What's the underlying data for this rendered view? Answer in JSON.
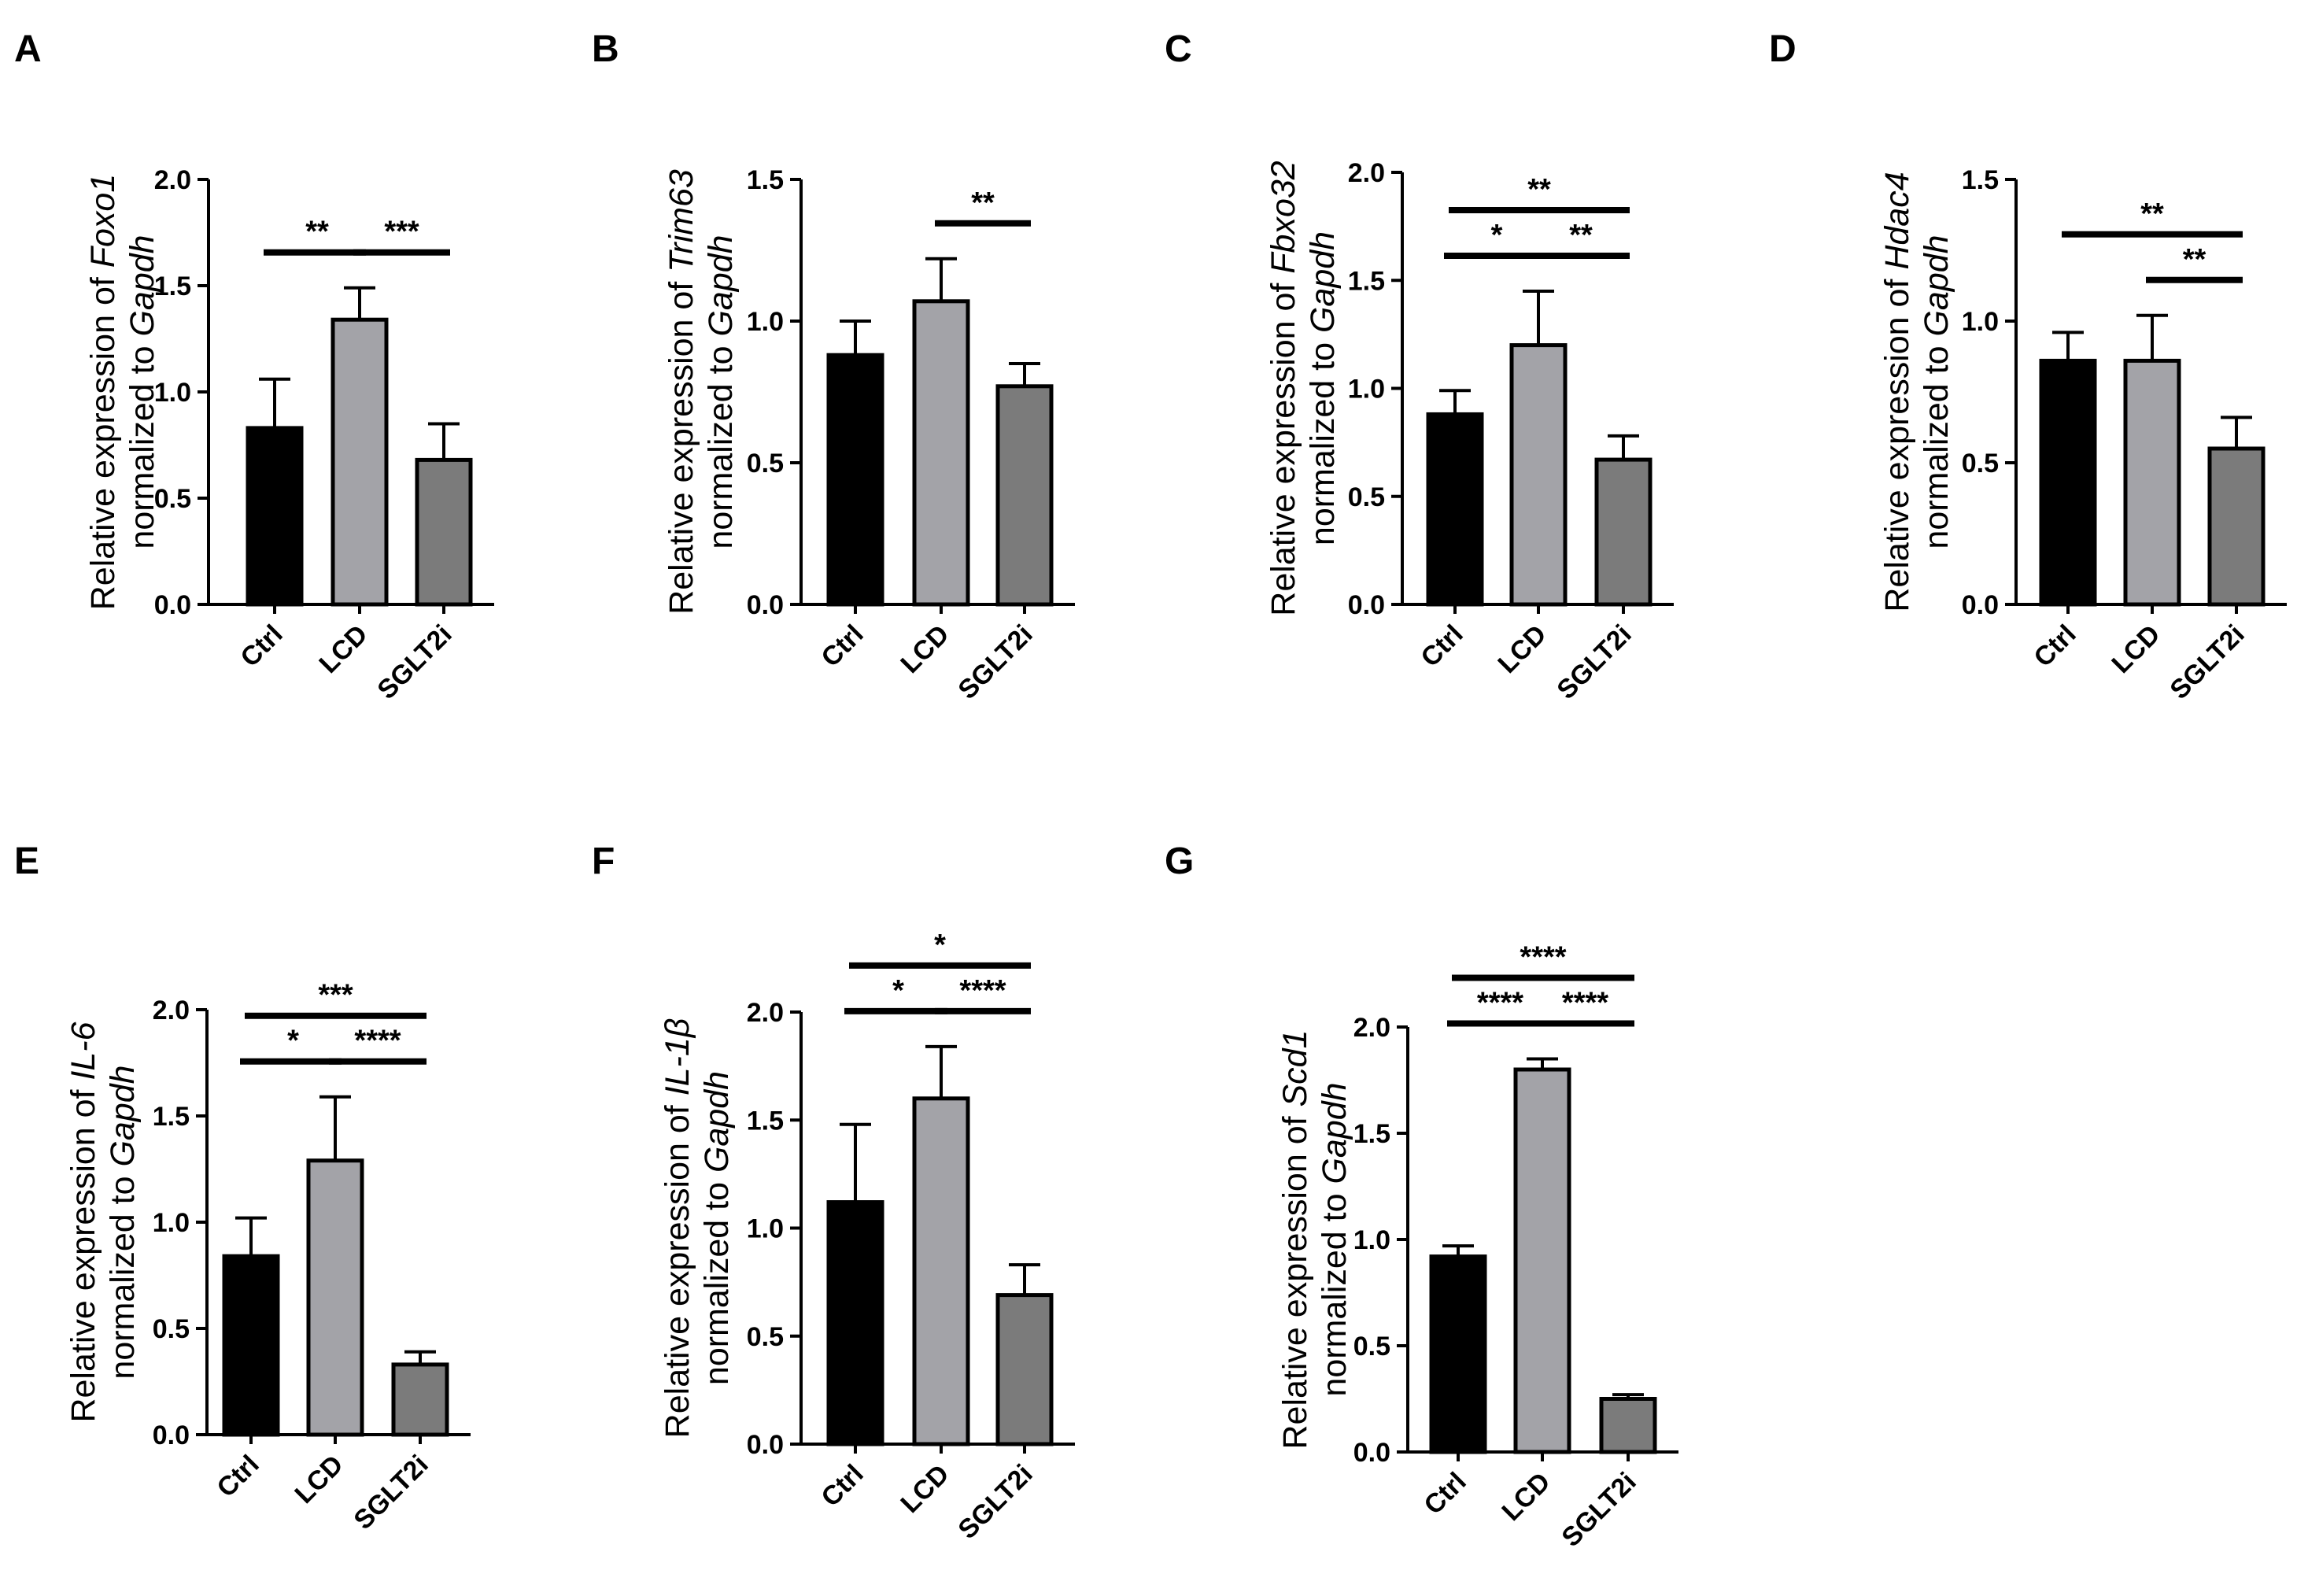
{
  "colors": {
    "Ctrl": "#000000",
    "LCD": "#a3a3a8",
    "SGLT2i": "#7b7b7b",
    "axis": "#000000"
  },
  "chart_data": [
    {
      "panel": "A",
      "type": "bar",
      "categories": [
        "Ctrl",
        "LCD",
        "SGLT2i"
      ],
      "values": [
        0.83,
        1.34,
        0.68
      ],
      "errors": [
        0.23,
        0.15,
        0.17
      ],
      "ylim": [
        0,
        2.0
      ],
      "yticks": [
        "0.0",
        "0.5",
        "1.0",
        "1.5",
        "2.0"
      ],
      "ylabel": {
        "line1": "Relative expression of ",
        "gene": "Foxo1",
        "line2": "normalized to ",
        "ref": "Gapdh"
      },
      "significance": [
        {
          "from": 0,
          "to": 1,
          "label": "**",
          "level": 0
        },
        {
          "from": 1,
          "to": 2,
          "label": "***",
          "level": 0
        }
      ]
    },
    {
      "panel": "B",
      "type": "bar",
      "categories": [
        "Ctrl",
        "LCD",
        "SGLT2i"
      ],
      "values": [
        0.88,
        1.07,
        0.77
      ],
      "errors": [
        0.12,
        0.15,
        0.08
      ],
      "ylim": [
        0,
        1.5
      ],
      "yticks": [
        "0.0",
        "0.5",
        "1.0",
        "1.5"
      ],
      "ylabel": {
        "line1": "Relative expression of ",
        "gene": "Trim63",
        "line2": "normalized to ",
        "ref": "Gapdh"
      },
      "significance": [
        {
          "from": 1,
          "to": 2,
          "label": "**",
          "level": 0
        }
      ]
    },
    {
      "panel": "C",
      "type": "bar",
      "categories": [
        "Ctrl",
        "LCD",
        "SGLT2i"
      ],
      "values": [
        0.88,
        1.2,
        0.67
      ],
      "errors": [
        0.11,
        0.25,
        0.11
      ],
      "ylim": [
        0,
        2.0
      ],
      "yticks": [
        "0.0",
        "0.5",
        "1.0",
        "1.5",
        "2.0"
      ],
      "ylabel": {
        "line1": "Relative expression of ",
        "gene": "Fbxo32",
        "line2": "normalized to ",
        "ref": "Gapdh"
      },
      "significance": [
        {
          "from": 0,
          "to": 1,
          "label": "*",
          "level": 0
        },
        {
          "from": 1,
          "to": 2,
          "label": "**",
          "level": 0
        },
        {
          "from": 0,
          "to": 2,
          "label": "**",
          "level": 1
        }
      ]
    },
    {
      "panel": "D",
      "type": "bar",
      "categories": [
        "Ctrl",
        "LCD",
        "SGLT2i"
      ],
      "values": [
        0.86,
        0.86,
        0.55
      ],
      "errors": [
        0.1,
        0.16,
        0.11
      ],
      "ylim": [
        0,
        1.5
      ],
      "yticks": [
        "0.0",
        "0.5",
        "1.0",
        "1.5"
      ],
      "ylabel": {
        "line1": "Relative expression of ",
        "gene": "Hdac4",
        "line2": "normalized to ",
        "ref": "Gapdh"
      },
      "significance": [
        {
          "from": 1,
          "to": 2,
          "label": "**",
          "level": 0
        },
        {
          "from": 0,
          "to": 2,
          "label": "**",
          "level": 1
        }
      ]
    },
    {
      "panel": "E",
      "type": "bar",
      "categories": [
        "Ctrl",
        "LCD",
        "SGLT2i"
      ],
      "values": [
        0.84,
        1.29,
        0.33
      ],
      "errors": [
        0.18,
        0.3,
        0.06
      ],
      "ylim": [
        0,
        2.0
      ],
      "yticks": [
        "0.0",
        "0.5",
        "1.0",
        "1.5",
        "2.0"
      ],
      "ylabel": {
        "line1": "Relative expression of ",
        "gene": "IL-6",
        "line2": "normalized to ",
        "ref": "Gapdh"
      },
      "significance": [
        {
          "from": 0,
          "to": 1,
          "label": "*",
          "level": 0
        },
        {
          "from": 1,
          "to": 2,
          "label": "****",
          "level": 0
        },
        {
          "from": 0,
          "to": 2,
          "label": "***",
          "level": 1
        }
      ]
    },
    {
      "panel": "F",
      "type": "bar",
      "categories": [
        "Ctrl",
        "LCD",
        "SGLT2i"
      ],
      "values": [
        1.12,
        1.6,
        0.69
      ],
      "errors": [
        0.36,
        0.24,
        0.14
      ],
      "ylim": [
        0,
        2.0
      ],
      "yticks": [
        "0.0",
        "0.5",
        "1.0",
        "1.5",
        "2.0"
      ],
      "ylabel": {
        "line1": "Relative expression of ",
        "gene": "IL-1β",
        "line2": "normalized to ",
        "ref": "Gapdh"
      },
      "significance": [
        {
          "from": 0,
          "to": 1,
          "label": "*",
          "level": 0
        },
        {
          "from": 1,
          "to": 2,
          "label": "****",
          "level": 0
        },
        {
          "from": 0,
          "to": 2,
          "label": "*",
          "level": 1
        }
      ]
    },
    {
      "panel": "G",
      "type": "bar",
      "categories": [
        "Ctrl",
        "LCD",
        "SGLT2i"
      ],
      "values": [
        0.92,
        1.8,
        0.25
      ],
      "errors": [
        0.05,
        0.05,
        0.02
      ],
      "ylim": [
        0,
        2.0
      ],
      "yticks": [
        "0.0",
        "0.5",
        "1.0",
        "1.5",
        "2.0"
      ],
      "ylabel": {
        "line1": "Relative expression of ",
        "gene": "Scd1",
        "line2": "normalized to ",
        "ref": "Gapdh"
      },
      "significance": [
        {
          "from": 0,
          "to": 1,
          "label": "****",
          "level": 0
        },
        {
          "from": 1,
          "to": 2,
          "label": "****",
          "level": 0
        },
        {
          "from": 0,
          "to": 2,
          "label": "****",
          "level": 1
        }
      ]
    }
  ]
}
